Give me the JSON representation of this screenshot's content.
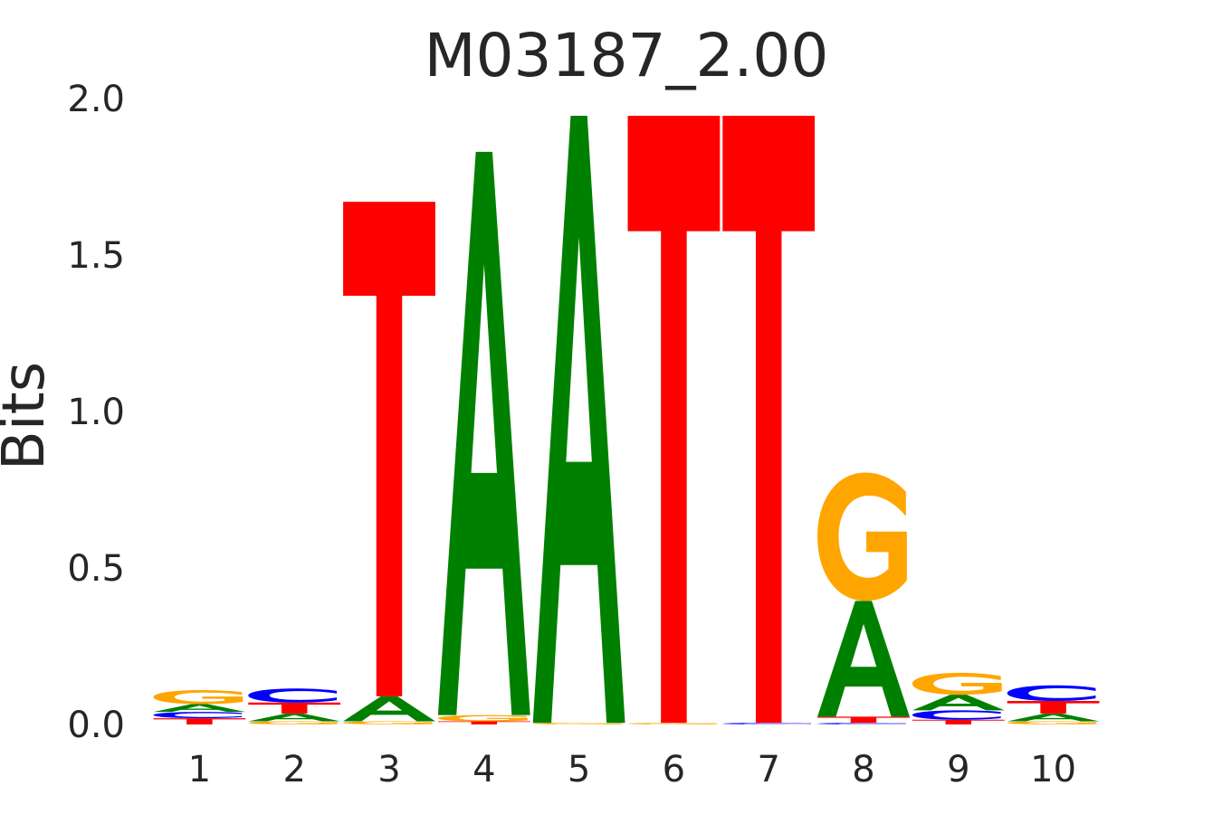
{
  "chart_data": {
    "type": "sequence-logo",
    "title": "M03187_2.00",
    "ylabel": "Bits",
    "xlabel": "",
    "ylim": [
      0,
      2.0
    ],
    "yticks": [
      "0.0",
      "0.5",
      "1.0",
      "1.5",
      "2.0"
    ],
    "ytick_values": [
      0,
      0.5,
      1.0,
      1.5,
      2.0
    ],
    "grid": false,
    "colors": {
      "A": "#008000",
      "C": "#0000ff",
      "G": "#ffa500",
      "T": "#ff0000"
    },
    "positions": [
      {
        "label": "1",
        "stack": [
          {
            "letter": "T",
            "bits": 0.02
          },
          {
            "letter": "C",
            "bits": 0.02
          },
          {
            "letter": "A",
            "bits": 0.025
          },
          {
            "letter": "G",
            "bits": 0.045
          }
        ]
      },
      {
        "label": "2",
        "stack": [
          {
            "letter": "G",
            "bits": 0.01
          },
          {
            "letter": "A",
            "bits": 0.025
          },
          {
            "letter": "T",
            "bits": 0.035
          },
          {
            "letter": "C",
            "bits": 0.045
          }
        ]
      },
      {
        "label": "3",
        "stack": [
          {
            "letter": "G",
            "bits": 0.01
          },
          {
            "letter": "A",
            "bits": 0.08
          },
          {
            "letter": "T",
            "bits": 1.58
          }
        ]
      },
      {
        "label": "4",
        "stack": [
          {
            "letter": "T",
            "bits": 0.01
          },
          {
            "letter": "G",
            "bits": 0.02
          },
          {
            "letter": "A",
            "bits": 1.8
          }
        ]
      },
      {
        "label": "5",
        "stack": [
          {
            "letter": "G",
            "bits": 0.005
          },
          {
            "letter": "A",
            "bits": 1.94
          }
        ]
      },
      {
        "label": "6",
        "stack": [
          {
            "letter": "G",
            "bits": 0.005
          },
          {
            "letter": "T",
            "bits": 1.94
          }
        ]
      },
      {
        "label": "7",
        "stack": [
          {
            "letter": "C",
            "bits": 0.005
          },
          {
            "letter": "T",
            "bits": 1.94
          }
        ]
      },
      {
        "label": "8",
        "stack": [
          {
            "letter": "C",
            "bits": 0.005
          },
          {
            "letter": "T",
            "bits": 0.02
          },
          {
            "letter": "A",
            "bits": 0.37
          },
          {
            "letter": "G",
            "bits": 0.41
          }
        ]
      },
      {
        "label": "9",
        "stack": [
          {
            "letter": "T",
            "bits": 0.015
          },
          {
            "letter": "C",
            "bits": 0.03
          },
          {
            "letter": "A",
            "bits": 0.05
          },
          {
            "letter": "G",
            "bits": 0.07
          }
        ]
      },
      {
        "label": "10",
        "stack": [
          {
            "letter": "G",
            "bits": 0.01
          },
          {
            "letter": "A",
            "bits": 0.025
          },
          {
            "letter": "T",
            "bits": 0.04
          },
          {
            "letter": "C",
            "bits": 0.05
          }
        ]
      }
    ]
  }
}
